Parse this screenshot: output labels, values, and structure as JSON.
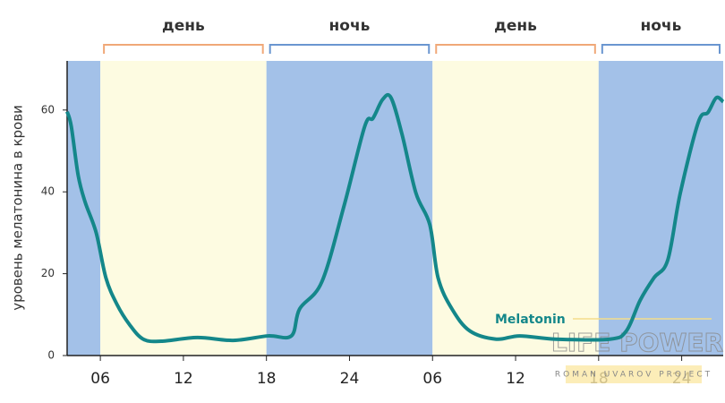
{
  "chart_data": {
    "type": "line",
    "ylabel": "уровень мелатонина в крови",
    "x": [
      3.6,
      3.9,
      4.4,
      4.9,
      5.7,
      6.4,
      7.2,
      8.1,
      9.1,
      10.4,
      13,
      15.6,
      18.1,
      19.8,
      20.4,
      22,
      23.6,
      25.1,
      25.7,
      26.4,
      27,
      27.8,
      28.8,
      29.8,
      30.4,
      31.4,
      32.7,
      34.6,
      36.3,
      38.9,
      42.8,
      44,
      45,
      46,
      47,
      47.9,
      49.2,
      49.9,
      50.5,
      51
    ],
    "series": [
      {
        "name": "Melatonin",
        "color": "#14878a",
        "values": [
          59.6,
          56,
          44,
          37.5,
          30,
          19,
          12.5,
          7.6,
          4,
          3.5,
          4.4,
          3.7,
          4.8,
          4.8,
          11.4,
          18,
          36.5,
          56,
          58,
          62.6,
          63,
          54,
          39.7,
          32,
          19,
          11.4,
          6,
          4,
          4.8,
          4,
          4,
          6,
          13.5,
          19,
          23.4,
          39.7,
          57,
          59.4,
          63,
          62
        ]
      }
    ],
    "xlim": [
      3.6,
      51
    ],
    "ylim": [
      0,
      72
    ],
    "xticks": [
      {
        "value": 6,
        "label": "06"
      },
      12,
      18,
      24,
      {
        "value": 30,
        "label": "06"
      },
      {
        "value": 36,
        "label": "12"
      },
      {
        "value": 42,
        "label": "18"
      },
      {
        "value": 48,
        "label": "24"
      }
    ],
    "yticks": [
      0,
      20,
      40,
      60
    ],
    "periods": [
      {
        "label": null,
        "start": 3.6,
        "end": 6,
        "color": "#a3c1e8",
        "bracket_color": "#6a96d0"
      },
      {
        "label": "день",
        "start": 6,
        "end": 18,
        "color": "#fdfbe1",
        "bracket_color": "#f0a878"
      },
      {
        "label": "ночь",
        "start": 18,
        "end": 30,
        "color": "#a3c1e8",
        "bracket_color": "#6a96d0"
      },
      {
        "label": "день",
        "start": 30,
        "end": 42,
        "color": "#fdfbe1",
        "bracket_color": "#f0a878"
      },
      {
        "label": "ночь",
        "start": 42,
        "end": 51,
        "color": "#a3c1e8",
        "bracket_color": "#6a96d0"
      }
    ],
    "watermark": {
      "title": "LIFE POWER",
      "subtitle": "ROMAN UVAROV PROJECT"
    }
  }
}
